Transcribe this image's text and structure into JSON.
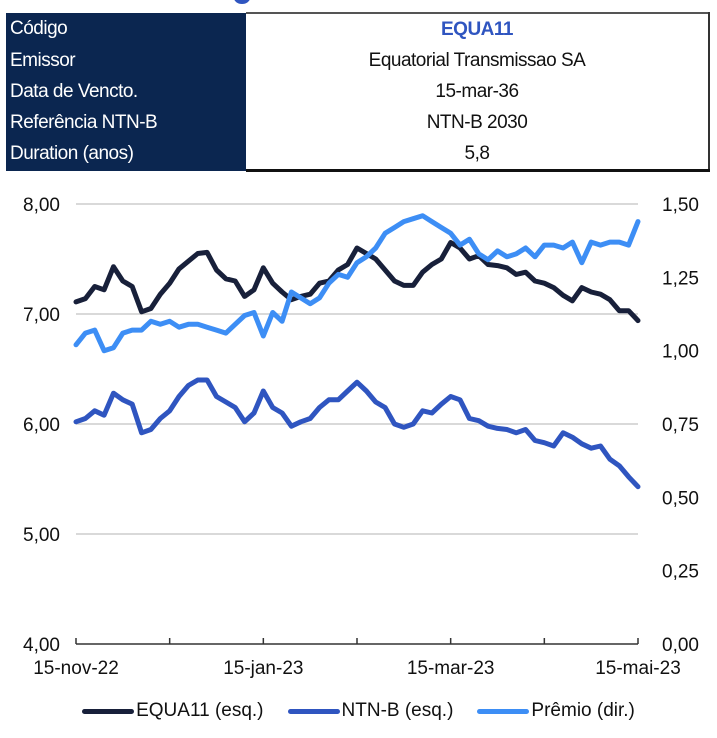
{
  "info_table": {
    "rows": [
      {
        "label": "Código",
        "value": "EQUA11"
      },
      {
        "label": "Emissor",
        "value": "Equatorial Transmissao SA"
      },
      {
        "label": "Data de Vencto.",
        "value": "15-mar-36"
      },
      {
        "label": "Referência NTN-B",
        "value": "NTN-B 2030"
      },
      {
        "label": "Duration (anos)",
        "value": "5,8"
      }
    ]
  },
  "colors": {
    "header_bg": "#0b2650",
    "equa11": "#18203a",
    "ntnb": "#2f55c0",
    "premio": "#3d8ef5",
    "grid": "#d9d9d9"
  },
  "chart_data": {
    "type": "line",
    "title": "",
    "xlabel": "",
    "ylabel": "",
    "x_tick_labels": [
      "15-nov-22",
      "15-jan-23",
      "15-mar-23",
      "15-mai-23"
    ],
    "x_range_months": [
      0,
      6
    ],
    "y_left": {
      "range": [
        4,
        8
      ],
      "ticks": [
        "4,00",
        "5,00",
        "6,00",
        "7,00",
        "8,00"
      ]
    },
    "y_right": {
      "range": [
        0,
        1.5
      ],
      "ticks": [
        "0,00",
        "0,25",
        "0,50",
        "0,75",
        "1,00",
        "1,25",
        "1,50"
      ]
    },
    "grid": true,
    "legend_position": "bottom",
    "x": [
      0,
      0.1,
      0.2,
      0.3,
      0.4,
      0.5,
      0.6,
      0.7,
      0.8,
      0.9,
      1.0,
      1.1,
      1.2,
      1.3,
      1.4,
      1.5,
      1.6,
      1.7,
      1.8,
      1.9,
      2.0,
      2.1,
      2.2,
      2.3,
      2.4,
      2.5,
      2.6,
      2.7,
      2.8,
      2.9,
      3.0,
      3.1,
      3.2,
      3.3,
      3.4,
      3.5,
      3.6,
      3.7,
      3.8,
      3.9,
      4.0,
      4.1,
      4.2,
      4.3,
      4.4,
      4.5,
      4.6,
      4.7,
      4.8,
      4.9,
      5.0,
      5.1,
      5.2,
      5.3,
      5.4,
      5.5,
      5.6,
      5.7,
      5.8,
      5.9,
      6.0
    ],
    "series": [
      {
        "name": "EQUA11 (esq.)",
        "axis": "left",
        "color": "#18203a",
        "values": [
          7.11,
          7.14,
          7.25,
          7.22,
          7.43,
          7.3,
          7.25,
          7.02,
          7.05,
          7.18,
          7.28,
          7.41,
          7.48,
          7.55,
          7.56,
          7.4,
          7.32,
          7.3,
          7.16,
          7.22,
          7.42,
          7.28,
          7.2,
          7.13,
          7.16,
          7.18,
          7.28,
          7.3,
          7.4,
          7.45,
          7.6,
          7.55,
          7.5,
          7.4,
          7.3,
          7.26,
          7.26,
          7.38,
          7.45,
          7.5,
          7.65,
          7.6,
          7.5,
          7.53,
          7.45,
          7.44,
          7.42,
          7.36,
          7.38,
          7.3,
          7.28,
          7.24,
          7.17,
          7.12,
          7.24,
          7.2,
          7.18,
          7.13,
          7.03,
          7.03,
          6.94
        ]
      },
      {
        "name": "NTN-B (esq.)",
        "axis": "left",
        "color": "#2f55c0",
        "values": [
          6.02,
          6.05,
          6.12,
          6.08,
          6.28,
          6.22,
          6.18,
          5.92,
          5.95,
          6.05,
          6.12,
          6.25,
          6.35,
          6.4,
          6.4,
          6.25,
          6.2,
          6.15,
          6.02,
          6.1,
          6.3,
          6.15,
          6.1,
          5.98,
          6.02,
          6.05,
          6.15,
          6.22,
          6.22,
          6.3,
          6.38,
          6.3,
          6.2,
          6.15,
          6.0,
          5.97,
          6.0,
          6.12,
          6.1,
          6.18,
          6.25,
          6.22,
          6.05,
          6.03,
          5.98,
          5.96,
          5.95,
          5.92,
          5.95,
          5.85,
          5.83,
          5.8,
          5.92,
          5.88,
          5.82,
          5.78,
          5.8,
          5.68,
          5.62,
          5.52,
          5.43
        ]
      },
      {
        "name": "Prêmio (dir.)",
        "axis": "right",
        "color": "#3d8ef5",
        "values": [
          1.02,
          1.06,
          1.07,
          1.0,
          1.01,
          1.06,
          1.07,
          1.07,
          1.1,
          1.09,
          1.1,
          1.08,
          1.09,
          1.09,
          1.08,
          1.07,
          1.06,
          1.09,
          1.12,
          1.13,
          1.05,
          1.13,
          1.1,
          1.2,
          1.18,
          1.16,
          1.18,
          1.23,
          1.26,
          1.25,
          1.3,
          1.32,
          1.35,
          1.4,
          1.42,
          1.44,
          1.45,
          1.46,
          1.44,
          1.42,
          1.4,
          1.36,
          1.38,
          1.33,
          1.31,
          1.34,
          1.32,
          1.33,
          1.35,
          1.32,
          1.36,
          1.36,
          1.35,
          1.37,
          1.3,
          1.37,
          1.36,
          1.37,
          1.37,
          1.36,
          1.44
        ]
      }
    ]
  }
}
